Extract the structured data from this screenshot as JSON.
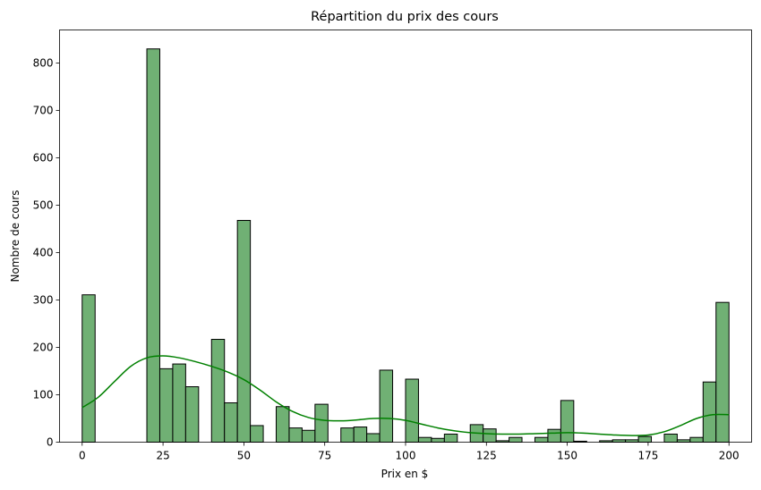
{
  "chart_data": {
    "type": "bar",
    "title": "Répartition du prix des cours",
    "xlabel": "Prix en $",
    "ylabel": "Nombre de cours",
    "xlim": [
      -7,
      207
    ],
    "ylim": [
      0,
      870
    ],
    "xticks": [
      0,
      25,
      50,
      75,
      100,
      125,
      150,
      175,
      200
    ],
    "yticks": [
      0,
      100,
      200,
      300,
      400,
      500,
      600,
      700,
      800
    ],
    "grid": false,
    "bar_color": "#70b074",
    "bar_edge_color": "#000000",
    "kde_color": "#008000",
    "bins": {
      "start": 0,
      "width": 4,
      "counts": [
        311,
        0,
        0,
        0,
        0,
        830,
        155,
        165,
        117,
        0,
        217,
        83,
        468,
        35,
        0,
        75,
        30,
        25,
        80,
        0,
        30,
        32,
        18,
        152,
        0,
        133,
        10,
        8,
        17,
        0,
        37,
        28,
        3,
        10,
        0,
        10,
        27,
        88,
        2,
        0,
        3,
        5,
        5,
        12,
        0,
        17,
        5,
        10,
        127,
        295
      ]
    },
    "kde": {
      "x": [
        0,
        5,
        10,
        15,
        20,
        25,
        30,
        35,
        40,
        45,
        50,
        55,
        60,
        65,
        70,
        75,
        80,
        85,
        90,
        95,
        100,
        105,
        110,
        115,
        120,
        125,
        130,
        135,
        140,
        145,
        150,
        155,
        160,
        165,
        170,
        175,
        180,
        185,
        190,
        195,
        200
      ],
      "y": [
        73,
        95,
        128,
        160,
        178,
        182,
        178,
        170,
        160,
        148,
        132,
        110,
        85,
        65,
        52,
        46,
        45,
        47,
        50,
        50,
        46,
        38,
        30,
        24,
        20,
        18,
        17,
        17,
        18,
        19,
        20,
        19,
        17,
        15,
        14,
        15,
        22,
        35,
        50,
        58,
        58
      ]
    }
  }
}
